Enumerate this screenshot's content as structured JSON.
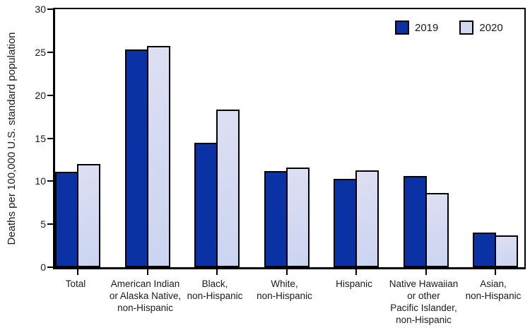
{
  "chart_data": {
    "type": "bar",
    "title": "",
    "ylabel": "Deaths per 100,000 U.S. standard population",
    "xlabel": "",
    "ylim": [
      0,
      30
    ],
    "yticks": [
      0,
      5,
      10,
      15,
      20,
      25,
      30
    ],
    "grid": false,
    "legend_position": "top-right-inside",
    "categories": [
      "Total",
      "American Indian\nor Alaska Native,\nnon-Hispanic",
      "Black,\nnon-Hispanic",
      "White,\nnon-Hispanic",
      "Hispanic",
      "Native Hawaiian\nor other\nPacific Islander,\nnon-Hispanic",
      "Asian,\nnon-Hispanic"
    ],
    "series": [
      {
        "name": "2019",
        "color": "#0a32a5",
        "values": [
          11.1,
          25.3,
          14.5,
          11.2,
          10.3,
          10.6,
          4.0
        ]
      },
      {
        "name": "2020",
        "color": "#d3d8ee",
        "values": [
          12.0,
          25.7,
          18.3,
          11.6,
          11.3,
          8.6,
          3.7
        ]
      }
    ]
  },
  "style": {
    "axis_color": "#000000",
    "bar_border_color": "#000000",
    "background": "#ffffff",
    "series_2020_gradient_top": "#dedff2",
    "series_2020_gradient_bottom": "#cad4f1"
  }
}
